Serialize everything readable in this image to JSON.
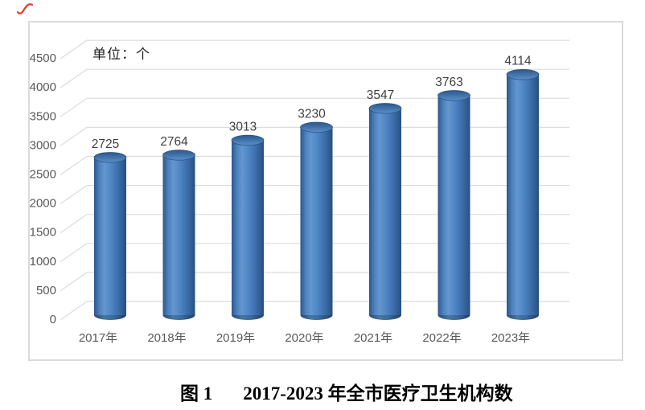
{
  "annotations": {
    "corner_mark": {
      "name": "red-pen-check-mark",
      "color": "#E8392B"
    }
  },
  "unit_label": "单位：个",
  "caption": {
    "figure_label": "图 1",
    "title": "2017-2023 年全市医疗卫生机构数"
  },
  "chart_data": {
    "type": "bar",
    "subtype": "3d-cylinder",
    "title": "",
    "unit": "个",
    "categories": [
      "2017年",
      "2018年",
      "2019年",
      "2020年",
      "2021年",
      "2022年",
      "2023年"
    ],
    "values": [
      2725,
      2764,
      3013,
      3230,
      3547,
      3763,
      4114
    ],
    "series": [
      {
        "name": "医疗卫生机构数",
        "values": [
          2725,
          2764,
          3013,
          3230,
          3547,
          3763,
          4114
        ]
      }
    ],
    "xlabel": "",
    "ylabel": "单位：个",
    "ylim": [
      0,
      4500
    ],
    "ytick_step": 500,
    "yticks": [
      0,
      500,
      1000,
      1500,
      2000,
      2500,
      3000,
      3500,
      4000,
      4500
    ],
    "grid": true,
    "legend": "none",
    "data_labels": true,
    "colors": {
      "bar_fill": "#4F81BD",
      "bar_shadow": "#2B5184",
      "bar_highlight": "#6FA0D8",
      "gridline": "#DCDCDC",
      "frame_border": "#DBDBDB",
      "axis_text": "#595959",
      "value_text": "#3F3F3F"
    }
  }
}
